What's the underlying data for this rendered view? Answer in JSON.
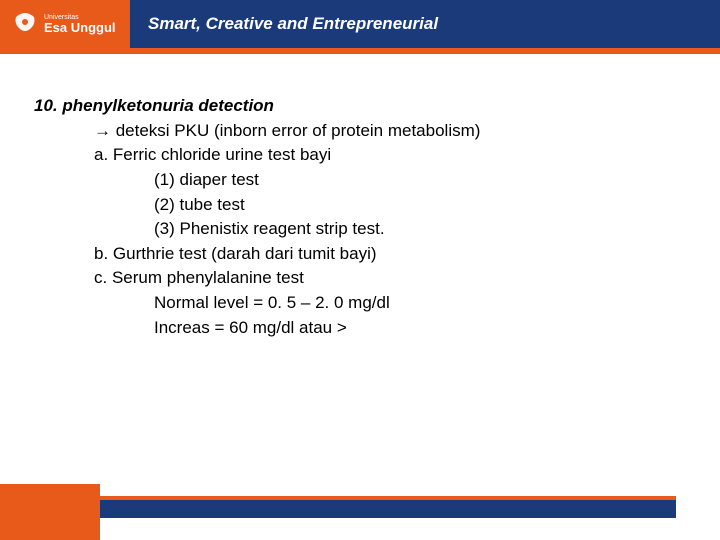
{
  "header": {
    "logo_top": "Universitas",
    "logo_bottom": "Esa Unggul",
    "tagline": "Smart, Creative and Entrepreneurial",
    "brand_orange": "#e85a1a",
    "brand_blue": "#1a3a7a"
  },
  "content": {
    "title": "10. phenylketonuria detection",
    "lines": [
      {
        "indent": 1,
        "text": "→ deteksi PKU (inborn error of protein metabolism)"
      },
      {
        "indent": 1,
        "text": "a.  Ferric chloride urine test bayi"
      },
      {
        "indent": 2,
        "text": "(1) diaper test"
      },
      {
        "indent": 2,
        "text": "(2) tube test"
      },
      {
        "indent": 2,
        "text": "(3) Phenistix reagent strip test."
      },
      {
        "indent": 1,
        "text": "b.  Gurthrie test (darah dari tumit bayi)"
      },
      {
        "indent": 1,
        "text": "c.  Serum phenylalanine test"
      },
      {
        "indent": 2,
        "text": "Normal level = 0. 5 – 2. 0 mg/dl"
      },
      {
        "indent": 2,
        "text": "Increas = 60 mg/dl atau >"
      }
    ],
    "font_size": 17,
    "text_color": "#000000"
  }
}
